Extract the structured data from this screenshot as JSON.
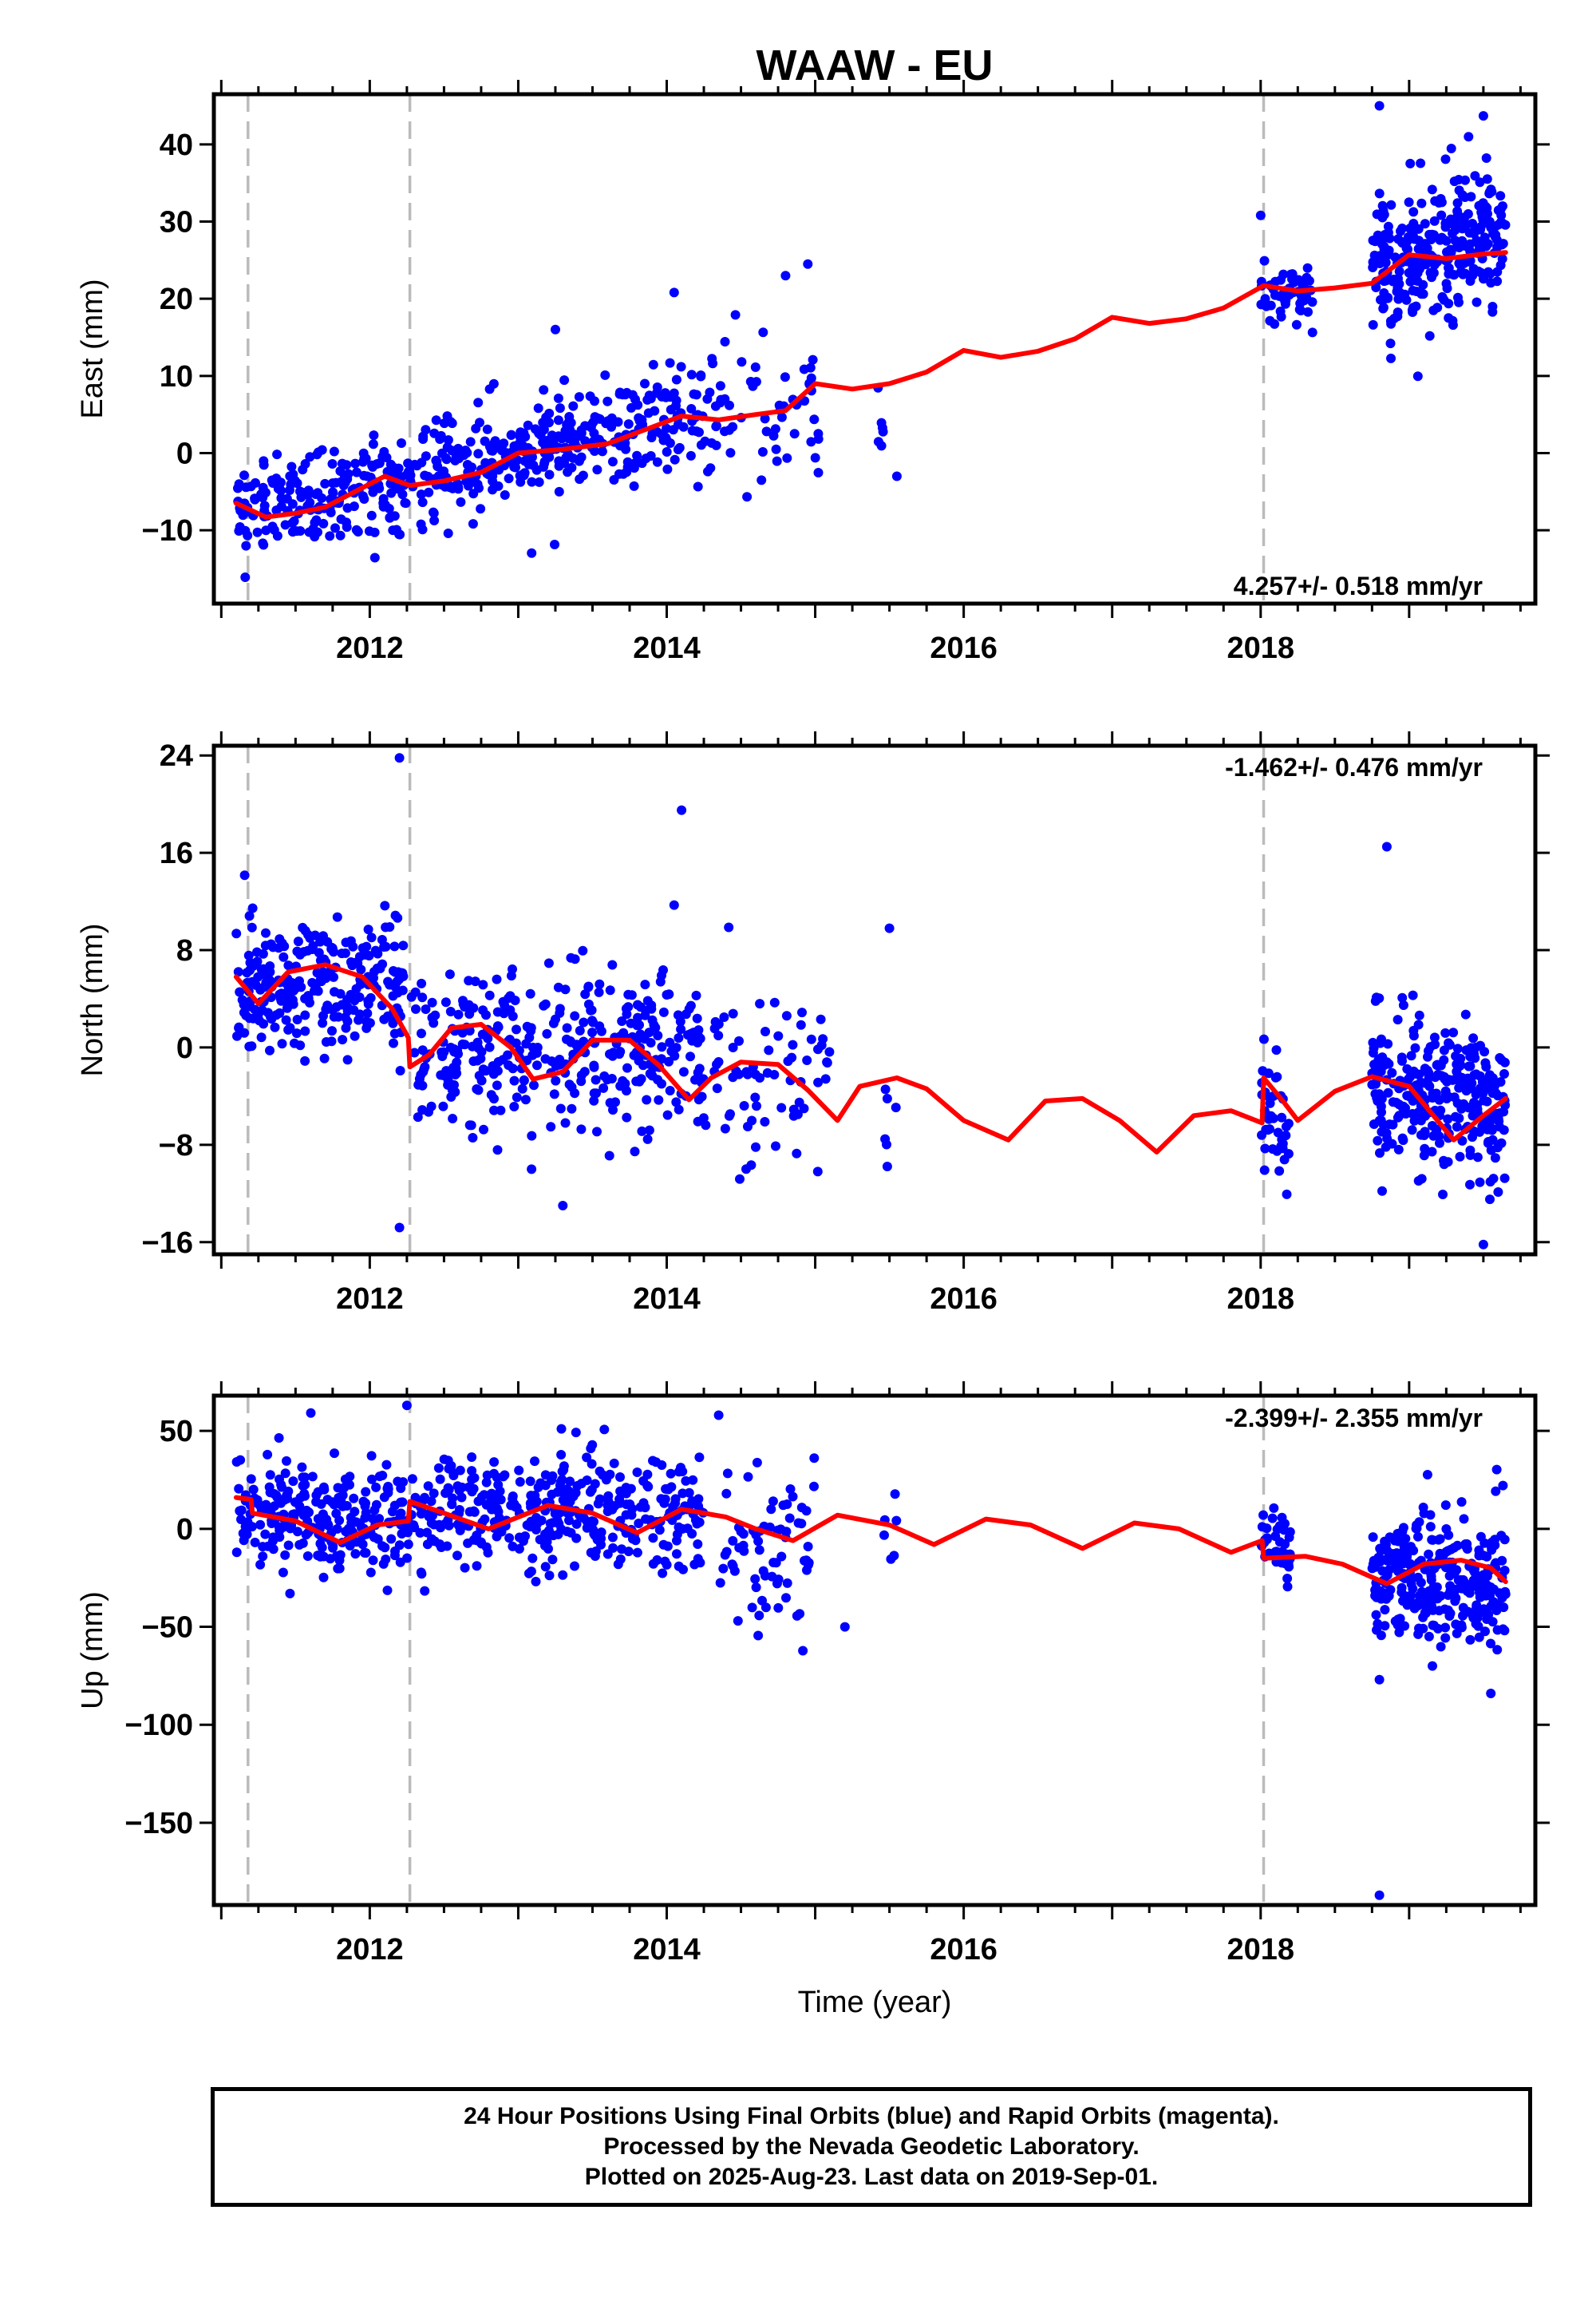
{
  "title": "WAAW - EU",
  "x_axis_label": "Time (year)",
  "footer": {
    "line1": "24 Hour Positions Using Final Orbits (blue) and Rapid Orbits (magenta).",
    "line2": "Processed by the Nevada Geodetic Laboratory.",
    "line3": "Plotted on 2025-Aug-23. Last data on 2019-Sep-01."
  },
  "colors": {
    "points": "#0000ff",
    "model": "#ff0000",
    "breaks": "#bbbbbb"
  },
  "chart_data": [
    {
      "type": "scatter",
      "component": "East",
      "ylabel": "East (mm)",
      "rate": "4.257+/- 0.518 mm/yr",
      "xlim": [
        2010.95,
        2019.85
      ],
      "ylim": [
        -19.5,
        46.5
      ],
      "yticks": [
        -10,
        0,
        10,
        20,
        30,
        40
      ],
      "yticklabels": [
        "−10",
        "0",
        "10",
        "20",
        "30",
        "40"
      ],
      "xticks": [
        2012,
        2014,
        2016,
        2018
      ],
      "breaks": [
        2011.18,
        2012.27,
        2018.02
      ],
      "model": {
        "x": [
          2011.1,
          2011.3,
          2011.5,
          2011.7,
          2011.9,
          2012.1,
          2012.27,
          2012.5,
          2012.75,
          2013.0,
          2013.3,
          2013.6,
          2013.85,
          2014.1,
          2014.35,
          2014.6,
          2014.8,
          2015.0,
          2015.25,
          2015.5,
          2015.75,
          2016.0,
          2016.25,
          2016.5,
          2016.75,
          2017.0,
          2017.25,
          2017.5,
          2017.75,
          2018.02,
          2018.25,
          2018.5,
          2018.75,
          2019.0,
          2019.25,
          2019.5,
          2019.65
        ],
        "y": [
          -6.5,
          -8.3,
          -7.8,
          -7.0,
          -5.0,
          -3.0,
          -4.2,
          -3.6,
          -2.5,
          0.0,
          0.5,
          1.2,
          3.0,
          4.8,
          4.3,
          5.0,
          5.5,
          9.0,
          8.3,
          9.0,
          10.5,
          13.3,
          12.4,
          13.2,
          14.8,
          17.6,
          16.8,
          17.4,
          18.8,
          21.7,
          21.0,
          21.4,
          22.0,
          25.7,
          25.2,
          25.8,
          26.0
        ]
      },
      "points": {
        "segments": [
          {
            "from": 2011.1,
            "to": 2014.1,
            "trend_from": -7.5,
            "trend_to": 4.5,
            "noise": 3.2,
            "count": 540
          },
          {
            "from": 2014.1,
            "to": 2015.05,
            "trend_from": 4.5,
            "trend_to": 7.0,
            "noise": 4.5,
            "count": 80
          },
          {
            "from": 2015.4,
            "to": 2015.55,
            "trend_from": 5.0,
            "trend_to": 5.0,
            "noise": 4.0,
            "count": 6
          },
          {
            "from": 2018.0,
            "to": 2018.35,
            "trend_from": 20.5,
            "trend_to": 20.5,
            "noise": 2.3,
            "count": 60
          },
          {
            "from": 2018.75,
            "to": 2019.65,
            "trend_from": 23.5,
            "trend_to": 29.0,
            "noise": 4.0,
            "count": 300
          }
        ],
        "outliers": [
          [
            2013.25,
            16.0
          ],
          [
            2014.05,
            20.8
          ],
          [
            2014.8,
            23.0
          ],
          [
            2014.95,
            24.5
          ],
          [
            2015.55,
            -3.0
          ],
          [
            2018.0,
            30.8
          ],
          [
            2018.8,
            45.0
          ],
          [
            2019.5,
            43.7
          ],
          [
            2019.4,
            41.0
          ]
        ]
      }
    },
    {
      "type": "scatter",
      "component": "North",
      "ylabel": "North (mm)",
      "rate": "-1.462+/- 0.476 mm/yr",
      "xlim": [
        2010.95,
        2019.85
      ],
      "ylim": [
        -17.0,
        24.8
      ],
      "yticks": [
        -16,
        -8,
        0,
        8,
        16,
        24
      ],
      "yticklabels": [
        "−16",
        "−8",
        "0",
        "8",
        "16",
        "24"
      ],
      "xticks": [
        2012,
        2014,
        2016,
        2018
      ],
      "breaks": [
        2011.18,
        2012.27,
        2018.02
      ],
      "model": {
        "x": [
          2011.1,
          2011.25,
          2011.45,
          2011.7,
          2011.95,
          2012.15,
          2012.26,
          2012.27,
          2012.4,
          2012.55,
          2012.75,
          2012.95,
          2013.1,
          2013.3,
          2013.5,
          2013.75,
          2013.95,
          2014.15,
          2014.3,
          2014.5,
          2014.75,
          2014.95,
          2015.15,
          2015.3,
          2015.55,
          2015.75,
          2016.0,
          2016.3,
          2016.55,
          2016.8,
          2017.05,
          2017.3,
          2017.55,
          2017.8,
          2018.01,
          2018.02,
          2018.15,
          2018.25,
          2018.5,
          2018.75,
          2019.0,
          2019.3,
          2019.5,
          2019.65
        ],
        "y": [
          5.8,
          3.6,
          6.2,
          6.8,
          5.8,
          3.2,
          0.8,
          -1.6,
          -0.6,
          1.6,
          1.9,
          0.0,
          -2.6,
          -2.0,
          0.6,
          0.6,
          -1.5,
          -4.3,
          -2.5,
          -1.2,
          -1.4,
          -3.5,
          -6.0,
          -3.2,
          -2.5,
          -3.4,
          -6.0,
          -7.6,
          -4.4,
          -4.2,
          -6.0,
          -8.6,
          -5.6,
          -5.2,
          -6.2,
          -2.5,
          -4.4,
          -6.0,
          -3.6,
          -2.4,
          -3.2,
          -7.6,
          -5.6,
          -4.2
        ]
      },
      "points": {
        "segments": [
          {
            "from": 2011.1,
            "to": 2012.27,
            "trend_from": 4.5,
            "trend_to": 5.5,
            "noise": 2.8,
            "count": 260
          },
          {
            "from": 2012.27,
            "to": 2014.25,
            "trend_from": 0.0,
            "trend_to": 0.0,
            "noise": 3.2,
            "count": 360
          },
          {
            "from": 2014.25,
            "to": 2015.1,
            "trend_from": -2.5,
            "trend_to": -1.5,
            "noise": 3.8,
            "count": 70
          },
          {
            "from": 2015.45,
            "to": 2015.55,
            "trend_from": -5.0,
            "trend_to": -5.0,
            "noise": 2.5,
            "count": 6
          },
          {
            "from": 2018.0,
            "to": 2018.2,
            "trend_from": -5.0,
            "trend_to": -5.0,
            "noise": 2.2,
            "count": 40
          },
          {
            "from": 2018.75,
            "to": 2019.65,
            "trend_from": -3.0,
            "trend_to": -5.0,
            "noise": 3.0,
            "count": 300
          }
        ],
        "outliers": [
          [
            2012.2,
            23.8
          ],
          [
            2014.1,
            19.5
          ],
          [
            2012.2,
            -14.8
          ],
          [
            2013.3,
            -13.0
          ],
          [
            2018.85,
            16.5
          ],
          [
            2019.5,
            -16.2
          ],
          [
            2015.5,
            9.8
          ],
          [
            2014.05,
            11.7
          ]
        ]
      }
    },
    {
      "type": "scatter",
      "component": "Up",
      "ylabel": "Up (mm)",
      "rate": "-2.399+/- 2.355 mm/yr",
      "xlim": [
        2010.95,
        2019.85
      ],
      "ylim": [
        -192,
        68
      ],
      "yticks": [
        -150,
        -100,
        -50,
        0,
        50
      ],
      "yticklabels": [
        "−150",
        "−100",
        "−50",
        "0",
        "50"
      ],
      "xticks": [
        2012,
        2014,
        2016,
        2018
      ],
      "breaks": [
        2011.18,
        2012.27,
        2018.02
      ],
      "model": {
        "x": [
          2011.1,
          2011.2,
          2011.21,
          2011.5,
          2011.8,
          2012.05,
          2012.26,
          2012.27,
          2012.5,
          2012.8,
          2013.2,
          2013.5,
          2013.8,
          2014.1,
          2014.4,
          2014.6,
          2014.85,
          2015.15,
          2015.5,
          2015.8,
          2016.15,
          2016.45,
          2016.8,
          2017.15,
          2017.45,
          2017.8,
          2018.01,
          2018.02,
          2018.3,
          2018.55,
          2018.85,
          2019.1,
          2019.35,
          2019.55,
          2019.65
        ],
        "y": [
          16,
          15,
          8,
          4,
          -7,
          2,
          4,
          14,
          8,
          0,
          12,
          8,
          -2,
          10,
          6,
          0,
          -6,
          7,
          2,
          -8,
          5,
          2,
          -10,
          3,
          0,
          -12,
          -6,
          -15,
          -14,
          -18,
          -28,
          -18,
          -16,
          -20,
          -27
        ]
      },
      "points": {
        "segments": [
          {
            "from": 2011.1,
            "to": 2012.27,
            "trend_from": 10.0,
            "trend_to": 2.0,
            "noise": 14.0,
            "count": 240
          },
          {
            "from": 2012.27,
            "to": 2014.25,
            "trend_from": 8.0,
            "trend_to": 8.0,
            "noise": 15.0,
            "count": 380
          },
          {
            "from": 2014.35,
            "to": 2015.0,
            "trend_from": -10.0,
            "trend_to": -10.0,
            "noise": 18.0,
            "count": 70
          },
          {
            "from": 2015.45,
            "to": 2015.55,
            "trend_from": 0.0,
            "trend_to": 0.0,
            "noise": 10.0,
            "count": 6
          },
          {
            "from": 2018.0,
            "to": 2018.2,
            "trend_from": -2.0,
            "trend_to": -15.0,
            "noise": 10.0,
            "count": 40
          },
          {
            "from": 2018.75,
            "to": 2019.65,
            "trend_from": -25.0,
            "trend_to": -25.0,
            "noise": 17.0,
            "count": 300
          }
        ],
        "outliers": [
          [
            2012.25,
            63.0
          ],
          [
            2014.35,
            58.0
          ],
          [
            2018.8,
            -187.0
          ],
          [
            2018.8,
            -77.0
          ],
          [
            2019.55,
            -84.0
          ],
          [
            2015.2,
            -50.0
          ]
        ]
      }
    }
  ]
}
